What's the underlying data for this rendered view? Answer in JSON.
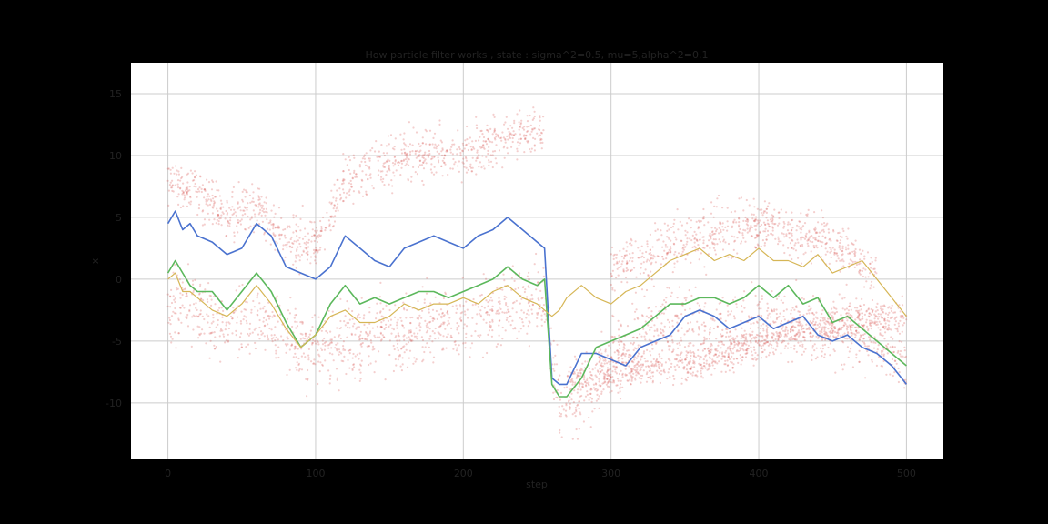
{
  "chart_data": {
    "type": "scatter",
    "title": "How particle filter works , state : sigma^2=0.5, mu=5,alpha^2=0.1",
    "xlabel": "step",
    "ylabel": "x",
    "xlim": [
      -25,
      525
    ],
    "ylim": [
      -14.5,
      17.5
    ],
    "xticks": [
      0,
      100,
      200,
      300,
      400,
      500
    ],
    "yticks": [
      -10,
      -5,
      0,
      5,
      10,
      15
    ],
    "grid": true,
    "colors": {
      "figure_bg": "#000000",
      "plot_bg": "#ffffff",
      "grid": "#cccccc",
      "particles": "#d9534f",
      "true_state": "#4a72cf",
      "filter_estimate": "#5cb85c",
      "observation": "#d6b656"
    },
    "series": [
      {
        "key": "true_state",
        "kind": "line",
        "x": [
          0,
          5,
          10,
          15,
          20,
          30,
          40,
          50,
          60,
          70,
          80,
          90,
          100,
          110,
          120,
          130,
          140,
          150,
          160,
          170,
          180,
          190,
          200,
          210,
          220,
          230,
          240,
          250,
          255,
          260,
          265,
          270,
          280,
          290,
          300,
          310,
          320,
          330,
          340,
          350,
          360,
          370,
          380,
          390,
          400,
          410,
          420,
          430,
          440,
          450,
          460,
          470,
          480,
          490,
          500
        ],
        "y": [
          4.5,
          5.5,
          4.0,
          4.5,
          3.5,
          3.0,
          2.0,
          2.5,
          4.5,
          3.5,
          1.0,
          0.5,
          0.0,
          1.0,
          3.5,
          2.5,
          1.5,
          1.0,
          2.5,
          3.0,
          3.5,
          3.0,
          2.5,
          3.5,
          4.0,
          5.0,
          4.0,
          3.0,
          2.5,
          -8.0,
          -8.5,
          -8.5,
          -6.0,
          -6.0,
          -6.5,
          -7.0,
          -5.5,
          -5.0,
          -4.5,
          -3.0,
          -2.5,
          -3.0,
          -4.0,
          -3.5,
          -3.0,
          -4.0,
          -3.5,
          -3.0,
          -4.5,
          -5.0,
          -4.5,
          -5.5,
          -6.0,
          -7.0,
          -8.5
        ]
      },
      {
        "key": "filter_estimate",
        "kind": "line",
        "x": [
          0,
          5,
          10,
          15,
          20,
          30,
          40,
          50,
          60,
          70,
          80,
          90,
          100,
          110,
          120,
          130,
          140,
          150,
          160,
          170,
          180,
          190,
          200,
          210,
          220,
          230,
          240,
          250,
          255,
          260,
          265,
          270,
          280,
          290,
          300,
          310,
          320,
          330,
          340,
          350,
          360,
          370,
          380,
          390,
          400,
          410,
          420,
          430,
          440,
          450,
          460,
          470,
          480,
          490,
          500
        ],
        "y": [
          0.5,
          1.5,
          0.5,
          -0.5,
          -1.0,
          -1.0,
          -2.5,
          -1.0,
          0.5,
          -1.0,
          -3.5,
          -5.5,
          -4.5,
          -2.0,
          -0.5,
          -2.0,
          -1.5,
          -2.0,
          -1.5,
          -1.0,
          -1.0,
          -1.5,
          -1.0,
          -0.5,
          0.0,
          1.0,
          0.0,
          -0.5,
          0.0,
          -8.5,
          -9.5,
          -9.5,
          -8.0,
          -5.5,
          -5.0,
          -4.5,
          -4.0,
          -3.0,
          -2.0,
          -2.0,
          -1.5,
          -1.5,
          -2.0,
          -1.5,
          -0.5,
          -1.5,
          -0.5,
          -2.0,
          -1.5,
          -3.5,
          -3.0,
          -4.0,
          -5.0,
          -6.0,
          -7.0
        ]
      },
      {
        "key": "observation",
        "kind": "line",
        "x": [
          0,
          5,
          10,
          15,
          20,
          30,
          40,
          50,
          60,
          70,
          80,
          90,
          100,
          110,
          120,
          130,
          140,
          150,
          160,
          170,
          180,
          190,
          200,
          210,
          220,
          230,
          240,
          250,
          255,
          260,
          265,
          270,
          280,
          290,
          300,
          310,
          320,
          330,
          340,
          350,
          360,
          370,
          380,
          390,
          400,
          410,
          420,
          430,
          440,
          450,
          460,
          470,
          480,
          490,
          500
        ],
        "y": [
          0.0,
          0.5,
          -1.0,
          -1.0,
          -1.5,
          -2.5,
          -3.0,
          -2.0,
          -0.5,
          -2.0,
          -4.0,
          -5.5,
          -4.5,
          -3.0,
          -2.5,
          -3.5,
          -3.5,
          -3.0,
          -2.0,
          -2.5,
          -2.0,
          -2.0,
          -1.5,
          -2.0,
          -1.0,
          -0.5,
          -1.5,
          -2.0,
          -2.5,
          -3.0,
          -2.5,
          -1.5,
          -0.5,
          -1.5,
          -2.0,
          -1.0,
          -0.5,
          0.5,
          1.5,
          2.0,
          2.5,
          1.5,
          2.0,
          1.5,
          2.5,
          1.5,
          1.5,
          1.0,
          2.0,
          0.5,
          1.0,
          1.5,
          0.0,
          -1.5,
          -3.0
        ]
      }
    ],
    "particles": {
      "key": "particles",
      "kind": "scatter",
      "bands": [
        {
          "x": [
            0,
            20,
            40,
            60,
            80,
            100,
            120,
            140,
            160,
            180,
            200,
            220,
            240,
            255,
            265,
            280,
            300,
            320,
            340,
            360,
            380,
            400,
            420,
            440,
            460,
            480,
            500
          ],
          "y": [
            -2,
            -2.5,
            -4,
            -3,
            -5,
            -6,
            -5,
            -4.5,
            -4.5,
            -3.5,
            -3.5,
            -3,
            -2,
            -2,
            -10,
            -10,
            -6,
            -4.5,
            -3.5,
            -3.5,
            -4,
            -3.5,
            -3.5,
            -4,
            -4,
            -4.5,
            -7
          ],
          "spread": 3.2
        },
        {
          "x": [
            0,
            20,
            40,
            60,
            80,
            100,
            120,
            140,
            160,
            180,
            200,
            220,
            240,
            255
          ],
          "y": [
            8,
            7,
            5,
            6,
            3,
            3,
            8,
            9,
            10,
            10,
            10,
            11,
            12,
            12
          ],
          "spread": 2.2
        },
        {
          "x": [
            270,
            300,
            320,
            340,
            360,
            380,
            400,
            420,
            440,
            460,
            480,
            500
          ],
          "y": [
            -8,
            -8,
            -7,
            -7,
            -6.5,
            -6,
            -5,
            -4,
            -4,
            -3.5,
            -3,
            -3
          ],
          "spread": 1.6
        },
        {
          "x": [
            300,
            320,
            340,
            360,
            380,
            400,
            420,
            440,
            460,
            480
          ],
          "y": [
            1,
            1.5,
            3,
            3.5,
            4,
            4.5,
            4,
            3.5,
            2,
            0
          ],
          "spread": 2.3
        }
      ]
    }
  }
}
